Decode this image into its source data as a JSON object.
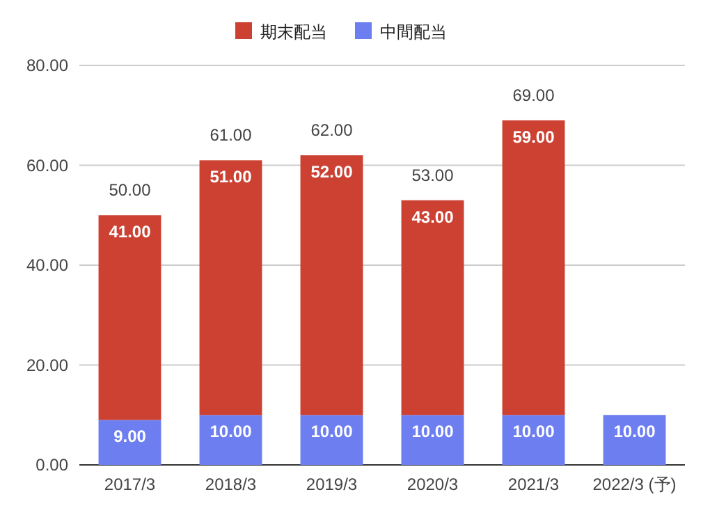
{
  "chart_data": {
    "type": "bar",
    "stacked": true,
    "categories": [
      "2017/3",
      "2018/3",
      "2019/3",
      "2020/3",
      "2021/3",
      "2022/3 (予)"
    ],
    "series": [
      {
        "name": "中間配当",
        "color": "#6d7ef0",
        "values": [
          9,
          10,
          10,
          10,
          10,
          10
        ],
        "value_labels": [
          "9.00",
          "10.00",
          "10.00",
          "10.00",
          "10.00",
          "10.00"
        ]
      },
      {
        "name": "期末配当",
        "color": "#cc4132",
        "values": [
          41,
          51,
          52,
          43,
          59,
          null
        ],
        "value_labels": [
          "41.00",
          "51.00",
          "52.00",
          "43.00",
          "59.00",
          null
        ]
      }
    ],
    "totals": [
      "50.00",
      "61.00",
      "62.00",
      "53.00",
      "69.00",
      null
    ],
    "ylim": [
      0,
      80
    ],
    "yticks": [
      {
        "value": 0,
        "label": "0.00"
      },
      {
        "value": 20,
        "label": "20.00"
      },
      {
        "value": 40,
        "label": "40.00"
      },
      {
        "value": 60,
        "label": "60.00"
      },
      {
        "value": 80,
        "label": "80.00"
      }
    ],
    "grid": "y",
    "legend": "top"
  }
}
